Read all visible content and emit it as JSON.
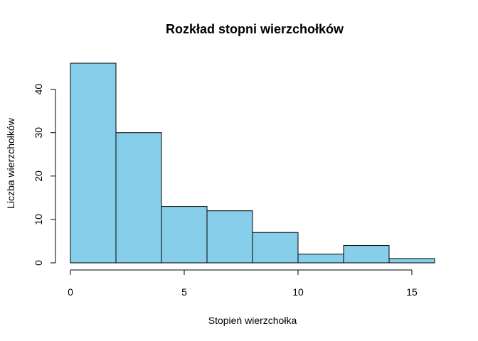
{
  "chart_data": {
    "type": "bar",
    "title": "Rozkład stopni wierzchołków",
    "xlabel": "Stopień wierzchołka",
    "ylabel": "Liczba wierzchołków",
    "bins": [
      {
        "x0": 0,
        "x1": 2,
        "count": 46
      },
      {
        "x0": 2,
        "x1": 4,
        "count": 30
      },
      {
        "x0": 4,
        "x1": 6,
        "count": 13
      },
      {
        "x0": 6,
        "x1": 8,
        "count": 12
      },
      {
        "x0": 8,
        "x1": 10,
        "count": 7
      },
      {
        "x0": 10,
        "x1": 12,
        "count": 2
      },
      {
        "x0": 12,
        "x1": 14,
        "count": 4
      },
      {
        "x0": 14,
        "x1": 16,
        "count": 1
      }
    ],
    "xlim": [
      0,
      16
    ],
    "ylim": [
      0,
      46
    ],
    "x_ticks": [
      0,
      5,
      10,
      15
    ],
    "y_ticks": [
      0,
      10,
      20,
      30,
      40
    ],
    "bar_color": "#87CEEB",
    "grid": false
  }
}
